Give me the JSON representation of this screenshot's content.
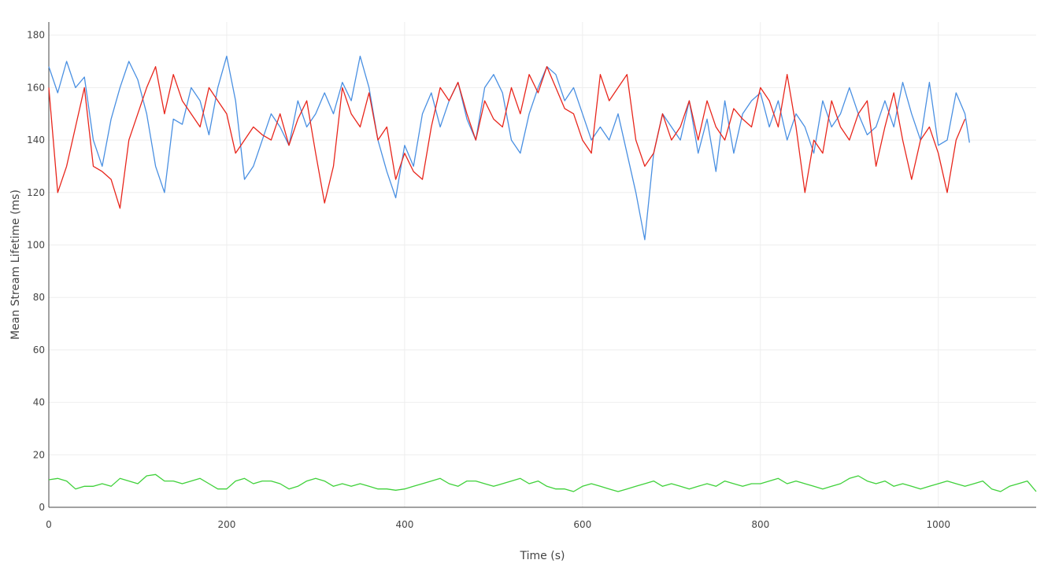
{
  "chart_data": {
    "type": "line",
    "title": "",
    "xlabel": "Time (s)",
    "ylabel": "Mean Stream Lifetime (ms)",
    "xlim": [
      0,
      1110
    ],
    "ylim": [
      0,
      185
    ],
    "x_ticks": [
      0,
      200,
      400,
      600,
      800,
      1000
    ],
    "y_ticks": [
      0,
      20,
      40,
      60,
      80,
      100,
      120,
      140,
      160,
      180
    ],
    "x_tick_labels": [
      "0",
      "200",
      "400",
      "600",
      "800",
      "1000"
    ],
    "y_tick_labels": [
      "0",
      "20",
      "40",
      "60",
      "80",
      "100",
      "120",
      "140",
      "160",
      "180"
    ],
    "grid": true,
    "legend": "none",
    "series": [
      {
        "color": "#4a90e2",
        "x": [
          0,
          10,
          20,
          30,
          40,
          50,
          60,
          70,
          80,
          90,
          100,
          110,
          120,
          130,
          140,
          150,
          160,
          170,
          180,
          190,
          200,
          210,
          220,
          230,
          240,
          250,
          260,
          270,
          280,
          290,
          300,
          310,
          320,
          330,
          340,
          350,
          360,
          370,
          380,
          390,
          400,
          410,
          420,
          430,
          440,
          450,
          460,
          470,
          480,
          490,
          500,
          510,
          520,
          530,
          540,
          550,
          560,
          570,
          580,
          590,
          600,
          610,
          620,
          630,
          640,
          650,
          660,
          670,
          680,
          690,
          700,
          710,
          720,
          730,
          740,
          750,
          760,
          770,
          780,
          790,
          800,
          810,
          820,
          830,
          840,
          850,
          860,
          870,
          880,
          890,
          900,
          910,
          920,
          930,
          940,
          950,
          960,
          970,
          980,
          990,
          1000,
          1010,
          1020,
          1030,
          1035
        ],
        "y": [
          168,
          158,
          170,
          160,
          164,
          140,
          130,
          148,
          160,
          170,
          163,
          150,
          130,
          120,
          148,
          146,
          160,
          155,
          142,
          160,
          172,
          155,
          125,
          130,
          140,
          150,
          145,
          138,
          155,
          145,
          150,
          158,
          150,
          162,
          155,
          172,
          160,
          140,
          128,
          118,
          138,
          130,
          150,
          158,
          145,
          155,
          162,
          148,
          140,
          160,
          165,
          158,
          140,
          135,
          150,
          160,
          168,
          165,
          155,
          160,
          150,
          140,
          145,
          140,
          150,
          135,
          120,
          102,
          135,
          150,
          145,
          140,
          155,
          135,
          148,
          128,
          155,
          135,
          150,
          155,
          158,
          145,
          155,
          140,
          150,
          145,
          135,
          155,
          145,
          150,
          160,
          150,
          142,
          145,
          155,
          145,
          162,
          150,
          140,
          162,
          138,
          140,
          158,
          150,
          139
        ]
      },
      {
        "color": "#e8261c",
        "x": [
          0,
          10,
          20,
          30,
          40,
          50,
          60,
          70,
          80,
          90,
          100,
          110,
          120,
          130,
          140,
          150,
          160,
          170,
          180,
          190,
          200,
          210,
          220,
          230,
          240,
          250,
          260,
          270,
          280,
          290,
          300,
          310,
          320,
          330,
          340,
          350,
          360,
          370,
          380,
          390,
          400,
          410,
          420,
          430,
          440,
          450,
          460,
          470,
          480,
          490,
          500,
          510,
          520,
          530,
          540,
          550,
          560,
          570,
          580,
          590,
          600,
          610,
          620,
          630,
          640,
          650,
          660,
          670,
          680,
          690,
          700,
          710,
          720,
          730,
          740,
          750,
          760,
          770,
          780,
          790,
          800,
          810,
          820,
          830,
          840,
          850,
          860,
          870,
          880,
          890,
          900,
          910,
          920,
          930,
          940,
          950,
          960,
          970,
          980,
          990,
          1000,
          1010,
          1020,
          1030
        ],
        "y": [
          160,
          120,
          130,
          145,
          160,
          130,
          128,
          125,
          114,
          140,
          150,
          160,
          168,
          150,
          165,
          155,
          150,
          145,
          160,
          155,
          150,
          135,
          140,
          145,
          142,
          140,
          150,
          138,
          148,
          155,
          135,
          116,
          130,
          160,
          150,
          145,
          158,
          140,
          145,
          125,
          135,
          128,
          125,
          145,
          160,
          155,
          162,
          150,
          140,
          155,
          148,
          145,
          160,
          150,
          165,
          158,
          168,
          160,
          152,
          150,
          140,
          135,
          165,
          155,
          160,
          165,
          140,
          130,
          135,
          150,
          140,
          145,
          155,
          140,
          155,
          145,
          140,
          152,
          148,
          145,
          160,
          155,
          145,
          165,
          145,
          120,
          140,
          135,
          155,
          145,
          140,
          150,
          155,
          130,
          145,
          158,
          140,
          125,
          140,
          145,
          135,
          120,
          140,
          148
        ]
      },
      {
        "color": "#3fd13a",
        "x": [
          0,
          10,
          20,
          30,
          40,
          50,
          60,
          70,
          80,
          90,
          100,
          110,
          120,
          130,
          140,
          150,
          160,
          170,
          180,
          190,
          200,
          210,
          220,
          230,
          240,
          250,
          260,
          270,
          280,
          290,
          300,
          310,
          320,
          330,
          340,
          350,
          360,
          370,
          380,
          390,
          400,
          410,
          420,
          430,
          440,
          450,
          460,
          470,
          480,
          490,
          500,
          510,
          520,
          530,
          540,
          550,
          560,
          570,
          580,
          590,
          600,
          610,
          620,
          630,
          640,
          650,
          660,
          670,
          680,
          690,
          700,
          710,
          720,
          730,
          740,
          750,
          760,
          770,
          780,
          790,
          800,
          810,
          820,
          830,
          840,
          850,
          860,
          870,
          880,
          890,
          900,
          910,
          920,
          930,
          940,
          950,
          960,
          970,
          980,
          990,
          1000,
          1010,
          1020,
          1030,
          1040,
          1050,
          1060,
          1070,
          1080,
          1090,
          1100,
          1110
        ],
        "y": [
          10.5,
          11,
          10,
          7,
          8,
          8,
          9,
          8,
          11,
          10,
          9,
          12,
          12.5,
          10,
          10,
          9,
          10,
          11,
          9,
          7,
          7,
          10,
          11,
          9,
          10,
          10,
          9,
          7,
          8,
          10,
          11,
          10,
          8,
          9,
          8,
          9,
          8,
          7,
          7,
          6.5,
          7,
          8,
          9,
          10,
          11,
          9,
          8,
          10,
          10,
          9,
          8,
          9,
          10,
          11,
          9,
          10,
          8,
          7,
          7,
          6,
          8,
          9,
          8,
          7,
          6,
          7,
          8,
          9,
          10,
          8,
          9,
          8,
          7,
          8,
          9,
          8,
          10,
          9,
          8,
          9,
          9,
          10,
          11,
          9,
          10,
          9,
          8,
          7,
          8,
          9,
          11,
          12,
          10,
          9,
          10,
          8,
          9,
          8,
          7,
          8,
          9,
          10,
          9,
          8,
          9,
          10,
          7,
          6,
          8,
          9,
          10,
          6
        ]
      }
    ]
  }
}
